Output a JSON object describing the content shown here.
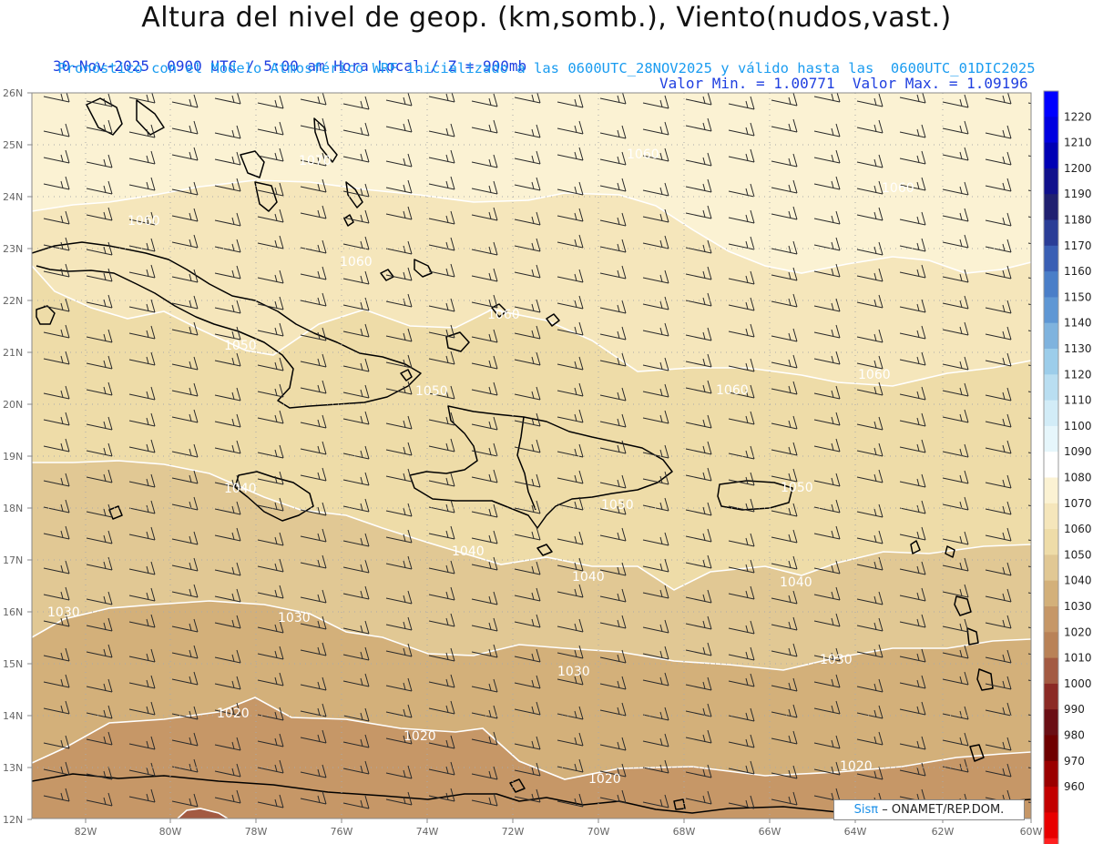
{
  "header": {
    "title": "Altura del nivel de geop. (km,somb.), Viento(nudos,vast.)",
    "subtitle_left": "30-Nov-2025  0900 UTC / 5:00 am Hora Local / Z = 900mb",
    "subtitle_right": "Valor Min. = 1.00771  Valor Max. = 1.09196",
    "subtitle2": "Pronóstico con el Modelo Atmosférico WRF inicializado a las 0600UTC_28NOV2025 y válido hasta las  0600UTC_01DIC2025"
  },
  "axes": {
    "lat_labels": [
      "26N",
      "25N",
      "24N",
      "23N",
      "22N",
      "21N",
      "20N",
      "19N",
      "18N",
      "17N",
      "16N",
      "15N",
      "14N",
      "13N",
      "12N"
    ],
    "lon_labels": [
      "82W",
      "80W",
      "78W",
      "76W",
      "74W",
      "72W",
      "70W",
      "68W",
      "66W",
      "64W",
      "62W",
      "60W"
    ],
    "lat_range": [
      12,
      26
    ],
    "lon_range": [
      -83.2,
      -60
    ]
  },
  "colorbar": {
    "levels": [
      "1220",
      "1210",
      "1200",
      "1190",
      "1180",
      "1170",
      "1160",
      "1150",
      "1140",
      "1130",
      "1120",
      "1110",
      "1100",
      "1090",
      "1080",
      "1070",
      "1060",
      "1050",
      "1040",
      "1030",
      "1020",
      "1010",
      "1000",
      "990",
      "980",
      "970",
      "960"
    ],
    "colors": [
      "#0000ff",
      "#0000e0",
      "#0000b4",
      "#10108c",
      "#202070",
      "#2a3d96",
      "#3a5fb4",
      "#4a7ec8",
      "#5f97d4",
      "#7fb3de",
      "#9ccdea",
      "#b9def1",
      "#d2ecf7",
      "#e6f6fb",
      "#ffffff",
      "#fbf2d3",
      "#f5e6bb",
      "#eedca8",
      "#e1c894",
      "#d3b07a",
      "#c69767",
      "#b98257",
      "#a35a42",
      "#8b2a25",
      "#6a0e14",
      "#6e0000",
      "#9a0000",
      "#c20000",
      "#e80000",
      "#ff2020"
    ]
  },
  "contour_labels": [
    "1070",
    "1060",
    "1060",
    "1060",
    "1060",
    "1050",
    "1050",
    "1060",
    "1060",
    "1060",
    "1050",
    "1050",
    "1040",
    "1040",
    "1040",
    "1040",
    "1030",
    "1030",
    "1030",
    "1030",
    "1020",
    "1020",
    "1020",
    "1020"
  ],
  "credit": {
    "sis": "Sisπ",
    "rest": "– ONAMET/REP.DOM."
  }
}
